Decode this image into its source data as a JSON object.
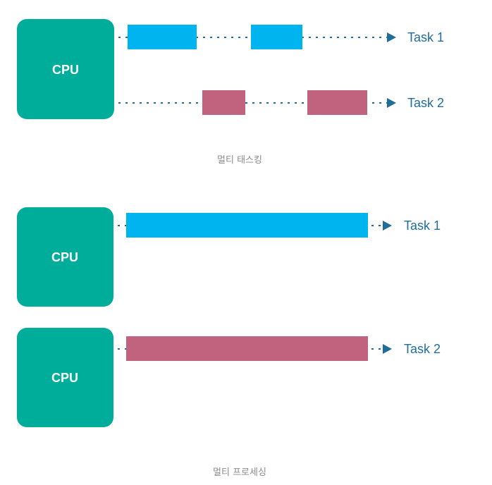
{
  "colors": {
    "cpu": "#00ac9a",
    "task1": "#00b4f0",
    "task2": "#c1637f",
    "line": "#1f6d99",
    "label": "#1f6d99",
    "caption": "#8a8a8a"
  },
  "multitasking": {
    "cpu_label": "CPU",
    "task1_label": "Task 1",
    "task2_label": "Task 2",
    "caption": "멀티 태스킹"
  },
  "multiprocessing": {
    "cpu1_label": "CPU",
    "cpu2_label": "CPU",
    "task1_label": "Task 1",
    "task2_label": "Task 2",
    "caption": "멀티 프로세싱"
  }
}
